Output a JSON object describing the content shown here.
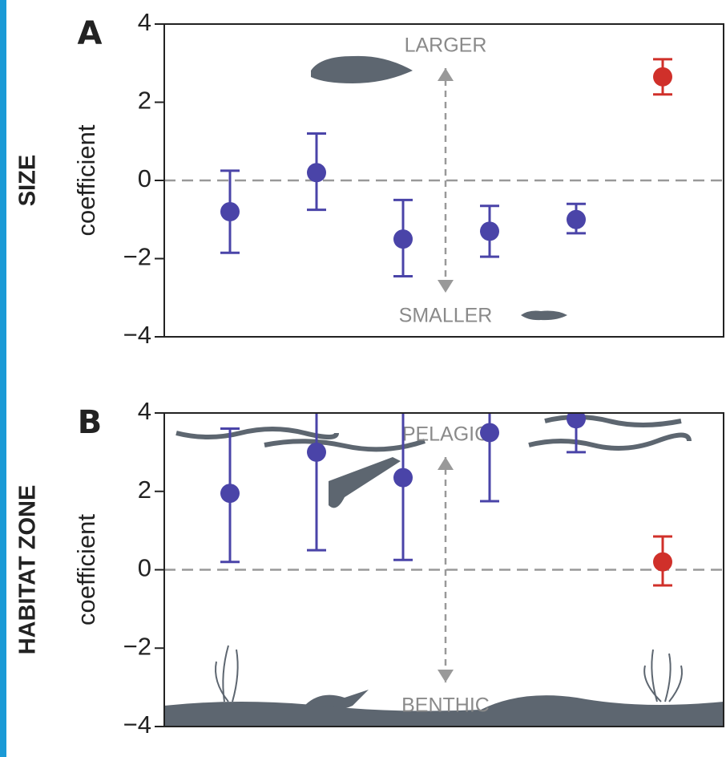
{
  "chart_data": [
    {
      "type": "errorbar",
      "panel_label": "A",
      "row_label": "SIZE",
      "ylabel": "coefficient",
      "top_label": "LARGER",
      "bottom_label": "SMALLER",
      "categories": [
        null,
        null,
        null,
        null,
        null,
        null
      ],
      "series": [
        {
          "color": "#4a44a8",
          "values": [
            -0.8,
            0.2,
            -1.5,
            -1.3,
            -1.0,
            null
          ],
          "lower": [
            -1.85,
            -0.75,
            -2.45,
            -1.95,
            -1.35,
            null
          ],
          "upper": [
            0.25,
            1.2,
            -0.5,
            -0.65,
            -0.6,
            null
          ]
        },
        {
          "color": "#d0302a",
          "values": [
            null,
            null,
            null,
            null,
            null,
            2.65
          ],
          "lower": [
            null,
            null,
            null,
            null,
            null,
            2.2
          ],
          "upper": [
            null,
            null,
            null,
            null,
            null,
            3.1
          ]
        }
      ],
      "ylim": [
        -4,
        4
      ],
      "yticks": [
        {
          "value": -4,
          "label": "−4"
        },
        {
          "value": -2,
          "label": "−2"
        },
        0,
        2,
        4
      ],
      "zero_line": true
    },
    {
      "type": "errorbar",
      "panel_label": "B",
      "row_label": "HABITAT ZONE",
      "ylabel": "coefficient",
      "top_label": "PELAGIC",
      "bottom_label": "BENTHIC",
      "categories": [
        null,
        null,
        null,
        null,
        null,
        null
      ],
      "series": [
        {
          "color": "#4a44a8",
          "values": [
            1.95,
            3.0,
            2.35,
            3.5,
            3.85,
            null
          ],
          "lower": [
            0.2,
            0.5,
            0.25,
            1.75,
            3.0,
            null
          ],
          "upper": [
            3.6,
            4.5,
            4.6,
            4.8,
            4.7,
            null
          ]
        },
        {
          "color": "#d0302a",
          "values": [
            null,
            null,
            null,
            null,
            null,
            0.2
          ],
          "lower": [
            null,
            null,
            null,
            null,
            null,
            -0.4
          ],
          "upper": [
            null,
            null,
            null,
            null,
            null,
            0.85
          ]
        }
      ],
      "ylim": [
        -4,
        4
      ],
      "yticks": [
        {
          "value": -4,
          "label": "−4"
        },
        {
          "value": -2,
          "label": "−2"
        },
        0,
        2,
        4
      ],
      "zero_line": true
    }
  ]
}
